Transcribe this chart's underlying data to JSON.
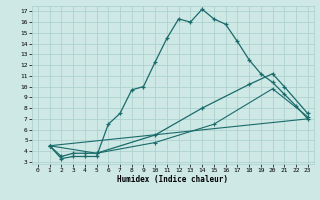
{
  "xlabel": "Humidex (Indice chaleur)",
  "background_color": "#cde8e5",
  "grid_color": "#aacfcc",
  "line_color": "#1a6b6b",
  "xlim": [
    -0.5,
    23.5
  ],
  "ylim": [
    2.8,
    17.5
  ],
  "xticks": [
    0,
    1,
    2,
    3,
    4,
    5,
    6,
    7,
    8,
    9,
    10,
    11,
    12,
    13,
    14,
    15,
    16,
    17,
    18,
    19,
    20,
    21,
    22,
    23
  ],
  "yticks": [
    3,
    4,
    5,
    6,
    7,
    8,
    9,
    10,
    11,
    12,
    13,
    14,
    15,
    16,
    17
  ],
  "line1_x": [
    1,
    2,
    3,
    4,
    5,
    6,
    7,
    8,
    9,
    10,
    11,
    12,
    13,
    14,
    15,
    16,
    17,
    18,
    19,
    20,
    21,
    22,
    23
  ],
  "line1_y": [
    4.5,
    3.3,
    3.5,
    3.5,
    3.5,
    6.5,
    7.5,
    9.7,
    10.0,
    12.3,
    14.5,
    16.3,
    16.0,
    17.2,
    16.3,
    15.8,
    14.2,
    12.5,
    11.2,
    10.4,
    9.3,
    8.2,
    7.0
  ],
  "line2_x": [
    1,
    2,
    3,
    4,
    5,
    10,
    14,
    18,
    20,
    21,
    23
  ],
  "line2_y": [
    4.5,
    3.5,
    3.8,
    3.8,
    3.8,
    5.5,
    8.0,
    10.2,
    11.2,
    10.0,
    7.5
  ],
  "line3_x": [
    1,
    5,
    10,
    15,
    20,
    23
  ],
  "line3_y": [
    4.5,
    3.8,
    4.8,
    6.5,
    9.8,
    7.2
  ],
  "line4_x": [
    1,
    23
  ],
  "line4_y": [
    4.5,
    7.0
  ]
}
